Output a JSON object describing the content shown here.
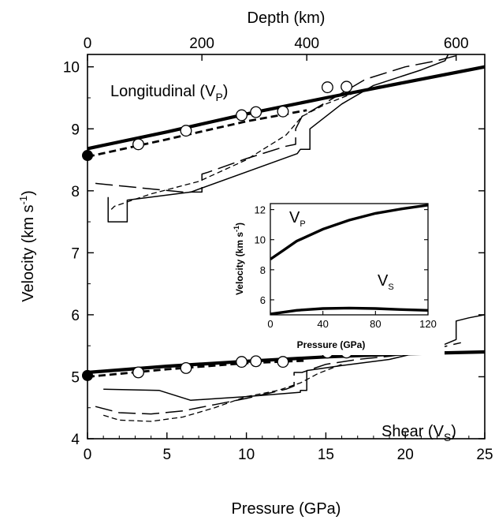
{
  "chart_data": [
    {
      "type": "line",
      "title": "",
      "xlabel": "Pressure (GPa)",
      "ylabel": "Velocity (km s-1)",
      "ylabel_main": "Velocity (km s",
      "ylabel_sup": "-1",
      "ylabel_close": ")",
      "xlim": [
        0,
        25
      ],
      "ylim": [
        4,
        10.2
      ],
      "x_ticks": [
        0,
        5,
        10,
        15,
        20,
        25
      ],
      "y_ticks": [
        4,
        5,
        6,
        7,
        8,
        9,
        10
      ],
      "top_axis": {
        "label": "Depth (km)",
        "ticks": [
          0,
          200,
          400,
          600
        ],
        "tick_pressures": [
          0,
          7.2,
          13.8,
          23.2
        ]
      },
      "annotations": {
        "vp_main": "Longitudinal (V",
        "vp_sub": "P",
        "vp_close": ")",
        "vs_main": "Shear (V",
        "vs_sub": "S",
        "vs_close": ")"
      },
      "series": [
        {
          "style": "thick-solid",
          "x": [
            0,
            5,
            10,
            15,
            20,
            25
          ],
          "y": [
            8.68,
            8.95,
            9.24,
            9.5,
            9.75,
            10.0
          ]
        },
        {
          "style": "dashed",
          "x": [
            0,
            5,
            10,
            13.8
          ],
          "y": [
            8.55,
            8.83,
            9.12,
            9.3
          ]
        },
        {
          "style": "thin-solid",
          "x": [
            1.3,
            1.3,
            2.5,
            2.5,
            6.5,
            13.2,
            13.4,
            14.0,
            14.0,
            16.0,
            18.0,
            21.0,
            22.5,
            22.7
          ],
          "y": [
            7.9,
            7.5,
            7.5,
            7.85,
            7.98,
            8.6,
            8.67,
            8.67,
            9.0,
            9.4,
            9.7,
            9.95,
            10.1,
            10.2
          ]
        },
        {
          "style": "long-dash",
          "x": [
            0.5,
            6.0,
            7.2,
            7.2,
            7.6,
            10.0,
            12.5,
            13.1,
            13.1,
            13.5,
            15.5,
            17.5,
            20.0,
            22.0,
            23.5
          ],
          "y": [
            8.12,
            7.98,
            7.98,
            8.27,
            8.3,
            8.52,
            8.72,
            8.75,
            9.0,
            9.2,
            9.5,
            9.8,
            10.0,
            10.1,
            10.2
          ]
        },
        {
          "style": "short-dash",
          "x": [
            1.5,
            1.7,
            4.0,
            7.0,
            10.0,
            12.5,
            13.5,
            15.0,
            17.0,
            18.5
          ],
          "y": [
            7.7,
            7.75,
            7.95,
            8.15,
            8.5,
            8.9,
            9.2,
            9.4,
            9.6,
            9.7
          ]
        },
        {
          "style": "thick-solid",
          "x": [
            0,
            5,
            10,
            15,
            20,
            25
          ],
          "y": [
            5.07,
            5.17,
            5.25,
            5.32,
            5.37,
            5.4
          ]
        },
        {
          "style": "dashed",
          "x": [
            0,
            5,
            10,
            13.8
          ],
          "y": [
            5.0,
            5.12,
            5.22,
            5.26
          ]
        },
        {
          "style": "thin-solid",
          "x": [
            1.0,
            4.5,
            6.5,
            10.0,
            13.4,
            13.4,
            13.8,
            13.8,
            16.0,
            19.0,
            21.8,
            23.2,
            23.2,
            24.0,
            25.0
          ],
          "y": [
            4.8,
            4.78,
            4.62,
            4.68,
            4.75,
            4.78,
            4.78,
            5.1,
            5.18,
            5.28,
            5.45,
            5.6,
            5.9,
            5.95,
            6.0
          ]
        },
        {
          "style": "long-dash",
          "x": [
            0.5,
            2.0,
            4.0,
            6.0,
            8.0,
            10.0,
            12.5,
            13.0,
            13.0,
            13.5,
            15.0,
            17.0,
            19.0,
            21.0,
            23.5
          ],
          "y": [
            4.52,
            4.42,
            4.4,
            4.45,
            4.55,
            4.65,
            4.8,
            4.85,
            5.07,
            5.07,
            5.2,
            5.28,
            5.33,
            5.4,
            5.55
          ]
        },
        {
          "style": "short-dash",
          "x": [
            1.0,
            2.0,
            4.0,
            6.0,
            8.0,
            10.0,
            12.0,
            13.4,
            14.5,
            16.0
          ],
          "y": [
            4.38,
            4.3,
            4.28,
            4.35,
            4.5,
            4.68,
            4.78,
            4.9,
            5.05,
            5.2
          ]
        }
      ],
      "open_circles": [
        {
          "x": 3.2,
          "y": 8.75
        },
        {
          "x": 6.2,
          "y": 8.97
        },
        {
          "x": 9.7,
          "y": 9.22
        },
        {
          "x": 10.6,
          "y": 9.27
        },
        {
          "x": 12.3,
          "y": 9.28
        },
        {
          "x": 15.1,
          "y": 9.67
        },
        {
          "x": 16.3,
          "y": 9.68
        },
        {
          "x": 3.2,
          "y": 5.07
        },
        {
          "x": 6.2,
          "y": 5.14
        },
        {
          "x": 9.7,
          "y": 5.24
        },
        {
          "x": 10.6,
          "y": 5.25
        },
        {
          "x": 12.3,
          "y": 5.24
        },
        {
          "x": 15.1,
          "y": 5.39
        },
        {
          "x": 16.3,
          "y": 5.39
        }
      ],
      "filled_circles": [
        {
          "x": 0,
          "y": 8.57
        },
        {
          "x": 0,
          "y": 5.02
        }
      ]
    },
    {
      "type": "line",
      "xlabel": "Pressure (GPa)",
      "ylabel": "Velocity (km s-1)",
      "ylabel_main": "Velocity (km s",
      "ylabel_sup": "-1",
      "ylabel_close": ")",
      "xlim": [
        0,
        120
      ],
      "ylim": [
        5,
        12.4
      ],
      "x_ticks": [
        0,
        40,
        80,
        120
      ],
      "y_ticks": [
        6,
        8,
        10,
        12
      ],
      "annotations": {
        "vp_main": "V",
        "vp_sub": "P",
        "vs_main": "V",
        "vs_sub": "S"
      },
      "series": [
        {
          "x": [
            0,
            10,
            20,
            40,
            60,
            80,
            100,
            120
          ],
          "y": [
            8.7,
            9.3,
            9.9,
            10.7,
            11.3,
            11.75,
            12.05,
            12.3
          ]
        },
        {
          "x": [
            0,
            20,
            40,
            60,
            80,
            100,
            120
          ],
          "y": [
            5.05,
            5.3,
            5.42,
            5.45,
            5.42,
            5.35,
            5.3
          ]
        }
      ]
    }
  ],
  "colors": {
    "ink": "#000000",
    "background": "#ffffff"
  }
}
